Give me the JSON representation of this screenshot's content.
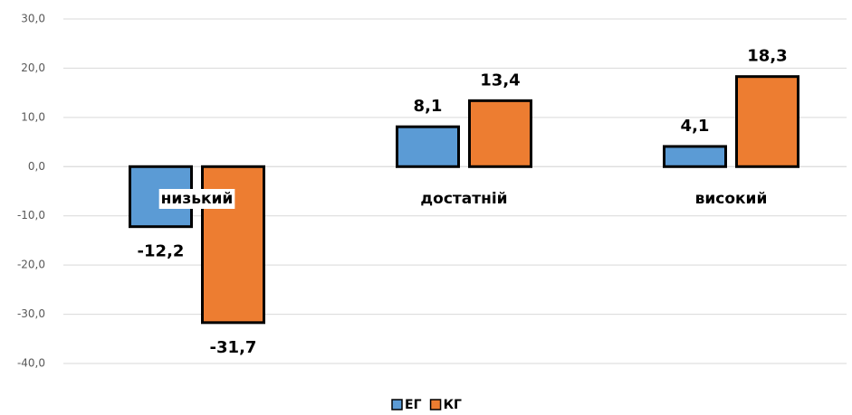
{
  "chart_data": {
    "type": "bar",
    "categories": [
      "низький",
      "достатній",
      "високий"
    ],
    "series": [
      {
        "name": "ЕГ",
        "color": "#5b9bd5",
        "values": [
          -12.2,
          8.1,
          4.1
        ],
        "value_labels": [
          "-12,2",
          "8,1",
          "4,1"
        ]
      },
      {
        "name": "КГ",
        "color": "#ed7d31",
        "values": [
          -31.7,
          13.4,
          18.3
        ],
        "value_labels": [
          "-31,7",
          "13,4",
          "18,3"
        ]
      }
    ],
    "ylim": [
      -40,
      30
    ],
    "yticks": [
      {
        "value": -40,
        "label": "-40,0"
      },
      {
        "value": -30,
        "label": "-30,0"
      },
      {
        "value": -20,
        "label": "-20,0"
      },
      {
        "value": -10,
        "label": "-10,0"
      },
      {
        "value": 0,
        "label": "0,0"
      },
      {
        "value": 10,
        "label": "10,0"
      },
      {
        "value": 20,
        "label": "20,0"
      },
      {
        "value": 30,
        "label": "30,0"
      }
    ],
    "grid": true,
    "legend": "bottom"
  }
}
